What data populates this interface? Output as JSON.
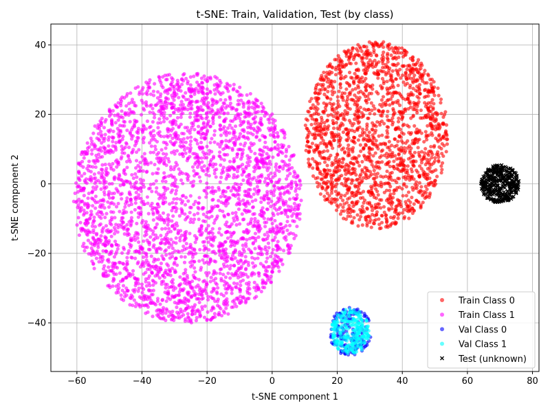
{
  "chart_data": {
    "type": "scatter",
    "title": "t-SNE: Train, Validation, Test (by class)",
    "xlabel": "t-SNE component 1",
    "ylabel": "t-SNE component 2",
    "xlim": [
      -68,
      82
    ],
    "ylim": [
      -54,
      46
    ],
    "xticks": [
      -60,
      -40,
      -20,
      0,
      20,
      40,
      60,
      80
    ],
    "yticks": [
      -40,
      -20,
      0,
      20,
      40
    ],
    "xtick_labels": [
      "−60",
      "−40",
      "−20",
      "0",
      "20",
      "40",
      "60",
      "80"
    ],
    "ytick_labels": [
      "−40",
      "−20",
      "0",
      "20",
      "40"
    ],
    "grid": true,
    "legend_position": "lower-right",
    "series": [
      {
        "name": "Train Class 0",
        "color": "#ff0000",
        "marker": "circle",
        "cluster": {
          "center": [
            32,
            14
          ],
          "radius": [
            22,
            27
          ]
        }
      },
      {
        "name": "Train Class 1",
        "color": "#ff00ff",
        "marker": "circle",
        "cluster": {
          "center": [
            -26,
            -4
          ],
          "radius": [
            35,
            36
          ]
        }
      },
      {
        "name": "Val Class 0",
        "color": "#0000ff",
        "marker": "circle",
        "cluster": {
          "center": [
            24,
            -42.5
          ],
          "radius": [
            6.5,
            7
          ]
        }
      },
      {
        "name": "Val Class 1",
        "color": "#00ffff",
        "marker": "circle",
        "cluster": {
          "center": [
            24,
            -42.5
          ],
          "radius": [
            6,
            6.5
          ]
        }
      },
      {
        "name": "Test (unknown)",
        "color": "#000000",
        "marker": "x",
        "cluster": {
          "center": [
            70,
            0
          ],
          "radius": [
            6,
            5.5
          ]
        }
      }
    ]
  }
}
